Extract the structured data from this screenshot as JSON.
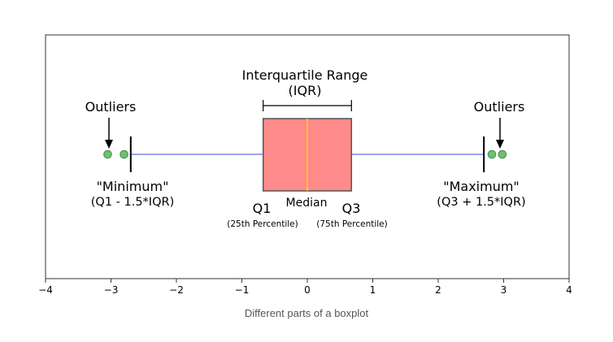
{
  "caption": "Different parts of a boxplot",
  "colors": {
    "box_fill": "#ff8a8a",
    "box_stroke": "#555555",
    "median": "#ffd700",
    "whisker": "#7d87e6",
    "outlier_fill": "#6fbf73",
    "outlier_stroke": "#3f8f45"
  },
  "chart_data": {
    "type": "boxplot",
    "orientation": "horizontal",
    "xlim": [
      -4,
      4
    ],
    "x_ticks": [
      "−4",
      "−3",
      "−2",
      "−1",
      "0",
      "1",
      "2",
      "3",
      "4"
    ],
    "tick_values": [
      -4,
      -3,
      -2,
      -1,
      0,
      1,
      2,
      3,
      4
    ],
    "q1": -0.6745,
    "median": 0,
    "q3": 0.6745,
    "whisker_low": -2.698,
    "whisker_high": 2.698,
    "outliers": [
      -3.05,
      -2.8,
      2.82,
      2.98
    ],
    "annotations": {
      "iqr_title": "Interquartile Range",
      "iqr_sub": "(IQR)",
      "outliers_left": "Outliers",
      "outliers_right": "Outliers",
      "minimum": "\"Minimum\"",
      "minimum_formula": "(Q1 - 1.5*IQR)",
      "maximum": "\"Maximum\"",
      "maximum_formula": "(Q3 + 1.5*IQR)",
      "q1": "Q1",
      "median": "Median",
      "q3": "Q3",
      "q1_sub": "(25th Percentile)",
      "q3_sub": "(75th Percentile)"
    }
  }
}
